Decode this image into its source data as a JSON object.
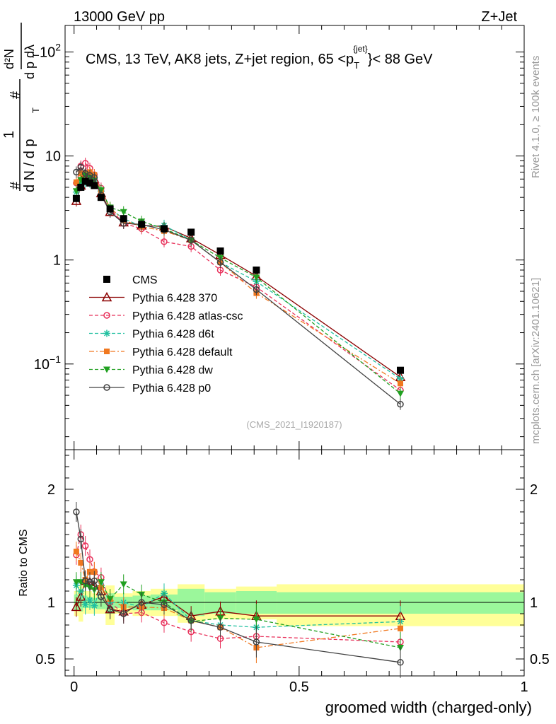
{
  "header": {
    "left": "13000 GeV pp",
    "right": "Z+Jet"
  },
  "side_texts": {
    "rivet": "Rivet 4.1.0, ≥ 100k events",
    "mcplots": "mcplots.cern.ch [arXiv:2401.10621]"
  },
  "colors": {
    "CMS": "#000000",
    "370": "#8b0000",
    "atlas-csc": "#e8305a",
    "d6t": "#20c0a0",
    "default": "#f07820",
    "dw": "#20a020",
    "p0": "#404040",
    "band_inner": "#9bf79b",
    "band_outer": "#ffff99"
  },
  "chart_data": [
    {
      "type": "line",
      "panel": "main",
      "title": "CMS, 13 TeV, AK8 jets, Z+jet region, 65 <p_T^{jet}< 88 GeV",
      "title_parts": {
        "main": "CMS, 13 TeV, AK8 jets, Z+jet region, 65 <p",
        "sub": "T",
        "sup": "{jet}",
        "end": "}< 88 GeV"
      },
      "watermark": "(CMS_2021_I1920187)",
      "ylabel": "1/(dN/dp_T) d^2N/(dp_T dλ)",
      "ylabel_parts": {
        "hash": "#",
        "one": "1",
        "den": "d N / d p",
        "t": "T",
        "d2n": "d²N",
        "dpdl": "d p  dλ",
        "t2": "T"
      },
      "yscale": "log",
      "xlim": [
        -0.02,
        1.0
      ],
      "ylim": [
        0.015,
        180
      ],
      "yticks": [
        {
          "value": 0.1,
          "label": "10",
          "exp": "−1"
        },
        {
          "value": 1,
          "label": "1",
          "exp": ""
        },
        {
          "value": 10,
          "label": "10",
          "exp": ""
        },
        {
          "value": 100,
          "label": "10",
          "exp": "2"
        }
      ],
      "x": [
        0.005,
        0.015,
        0.025,
        0.035,
        0.045,
        0.06,
        0.08,
        0.11,
        0.15,
        0.2,
        0.26,
        0.325,
        0.405,
        0.725
      ],
      "series": [
        {
          "name": "CMS",
          "key": "CMS",
          "marker": "square",
          "line": "none",
          "values": [
            3.9,
            5.0,
            5.7,
            5.5,
            5.2,
            4.0,
            3.1,
            2.5,
            2.2,
            2.0,
            1.85,
            1.22,
            0.8,
            0.087
          ]
        },
        {
          "name": "Pythia 6.428 370",
          "key": "370",
          "marker": "triangle-open",
          "line": "solid",
          "values": [
            3.7,
            5.2,
            6.8,
            6.5,
            6.0,
            4.4,
            2.9,
            2.3,
            2.15,
            2.1,
            1.62,
            1.12,
            0.7,
            0.075
          ]
        },
        {
          "name": "Pythia 6.428 atlas-csc",
          "key": "atlas-csc",
          "marker": "circle-open",
          "line": "dashed",
          "values": [
            5.5,
            8.0,
            8.5,
            7.6,
            6.6,
            4.9,
            3.1,
            2.25,
            2.0,
            1.5,
            1.35,
            0.8,
            0.55,
            0.056
          ]
        },
        {
          "name": "Pythia 6.428 d6t",
          "key": "d6t",
          "marker": "star",
          "line": "dashed",
          "values": [
            4.5,
            5.5,
            5.6,
            5.6,
            5.5,
            4.6,
            3.1,
            2.5,
            2.1,
            2.15,
            1.55,
            0.95,
            0.62,
            0.072
          ]
        },
        {
          "name": "Pythia 6.428 default",
          "key": "default",
          "marker": "square-filled",
          "line": "dashdot",
          "values": [
            5.6,
            6.8,
            6.8,
            7.0,
            6.6,
            4.5,
            3.2,
            2.4,
            2.1,
            1.9,
            1.55,
            0.95,
            0.48,
            0.065
          ]
        },
        {
          "name": "Pythia 6.428 dw",
          "key": "dw",
          "marker": "triangle-down",
          "line": "dashed",
          "values": [
            4.6,
            5.9,
            6.5,
            6.2,
            5.8,
            4.7,
            3.2,
            2.9,
            2.35,
            2.0,
            1.55,
            1.05,
            0.68,
            0.052
          ]
        },
        {
          "name": "Pythia 6.428 p0",
          "key": "p0",
          "marker": "circle-open",
          "line": "solid",
          "values": [
            7.0,
            7.8,
            6.8,
            6.5,
            6.2,
            4.2,
            2.9,
            2.25,
            2.2,
            1.95,
            1.55,
            0.95,
            0.52,
            0.041
          ]
        }
      ]
    },
    {
      "type": "line",
      "panel": "ratio",
      "xlabel": "groomed width (charged-only)",
      "ylabel": "Ratio to CMS",
      "xlim": [
        -0.02,
        1.0
      ],
      "ylim": [
        0.35,
        2.35
      ],
      "xticks": [
        {
          "value": 0,
          "label": "0"
        },
        {
          "value": 0.5,
          "label": "0.5"
        },
        {
          "value": 1,
          "label": "1"
        }
      ],
      "yticks": [
        {
          "value": 0.5,
          "label": "0.5"
        },
        {
          "value": 1,
          "label": "1"
        },
        {
          "value": 2,
          "label": "2"
        }
      ],
      "band_edges": [
        0,
        0.01,
        0.02,
        0.03,
        0.04,
        0.05,
        0.07,
        0.09,
        0.13,
        0.17,
        0.23,
        0.29,
        0.36,
        0.45,
        1.0
      ],
      "band_inner": [
        [
          0.93,
          1.07
        ],
        [
          0.92,
          1.1
        ],
        [
          0.95,
          1.06
        ],
        [
          0.95,
          1.05
        ],
        [
          0.95,
          1.04
        ],
        [
          0.94,
          1.05
        ],
        [
          0.9,
          1.08
        ],
        [
          0.95,
          1.05
        ],
        [
          0.93,
          1.06
        ],
        [
          0.93,
          1.07
        ],
        [
          0.88,
          1.12
        ],
        [
          0.9,
          1.09
        ],
        [
          0.9,
          1.1
        ],
        [
          0.9,
          1.09
        ]
      ],
      "band_outer": [
        [
          0.88,
          1.1
        ],
        [
          0.83,
          1.15
        ],
        [
          0.9,
          1.1
        ],
        [
          0.9,
          1.1
        ],
        [
          0.9,
          1.08
        ],
        [
          0.9,
          1.1
        ],
        [
          0.8,
          1.15
        ],
        [
          0.9,
          1.08
        ],
        [
          0.88,
          1.1
        ],
        [
          0.88,
          1.12
        ],
        [
          0.82,
          1.16
        ],
        [
          0.85,
          1.12
        ],
        [
          0.85,
          1.14
        ],
        [
          0.79,
          1.16
        ]
      ],
      "x": [
        0.005,
        0.015,
        0.025,
        0.035,
        0.045,
        0.06,
        0.08,
        0.11,
        0.15,
        0.2,
        0.26,
        0.325,
        0.405,
        0.725
      ],
      "series": [
        {
          "key": "370",
          "values": [
            0.96,
            1.05,
            1.19,
            1.18,
            1.15,
            1.1,
            0.94,
            0.92,
            0.98,
            1.05,
            0.88,
            0.92,
            0.88,
            0.88
          ]
        },
        {
          "key": "atlas-csc",
          "values": [
            1.42,
            1.6,
            1.5,
            1.38,
            1.27,
            1.22,
            1.0,
            0.9,
            0.91,
            0.82,
            0.74,
            0.68,
            0.7,
            0.65
          ]
        },
        {
          "key": "d6t",
          "values": [
            1.15,
            1.1,
            0.98,
            1.02,
            0.97,
            1.15,
            1.0,
            1.0,
            0.96,
            1.08,
            0.84,
            0.8,
            0.78,
            0.83
          ]
        },
        {
          "key": "default",
          "values": [
            1.45,
            1.35,
            1.2,
            1.27,
            1.27,
            1.13,
            1.03,
            0.96,
            0.96,
            0.95,
            0.84,
            0.78,
            0.6,
            0.77
          ]
        },
        {
          "key": "dw",
          "values": [
            1.18,
            1.18,
            1.15,
            1.13,
            1.11,
            1.18,
            1.03,
            1.16,
            1.07,
            1.0,
            0.83,
            0.86,
            0.85,
            0.6
          ]
        },
        {
          "key": "p0",
          "values": [
            1.8,
            1.56,
            1.19,
            1.18,
            1.19,
            1.05,
            0.94,
            0.9,
            1.0,
            0.98,
            0.84,
            0.78,
            0.65,
            0.47
          ]
        }
      ]
    }
  ]
}
